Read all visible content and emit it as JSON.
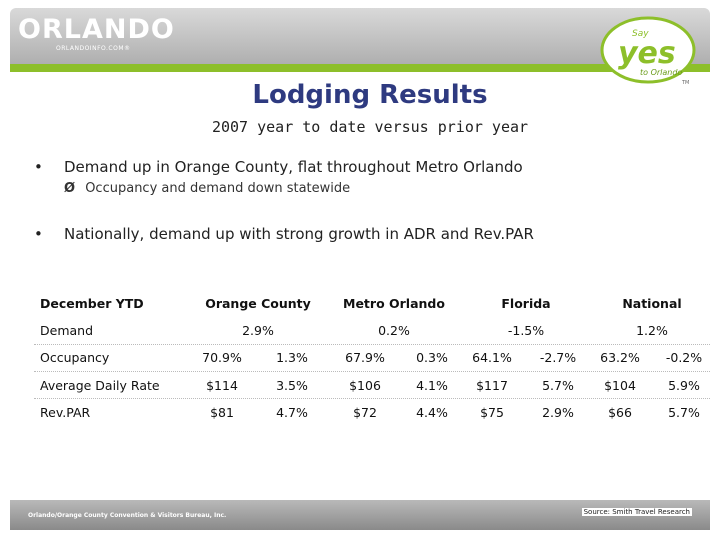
{
  "header": {
    "logo": "ORLANDO",
    "logo_sub": "ORLANDOINFO.COM®",
    "badge_say": "Say",
    "badge_yes": "yes",
    "badge_to": "to Orlando",
    "badge_tm": "TM"
  },
  "slide": {
    "title": "Lodging Results",
    "subtitle": "2007 year to date versus prior year",
    "bullet_1": "Demand up in Orange County, flat throughout Metro Orlando",
    "sub_bullet_1": "Occupancy and demand down statewide",
    "bullet_2": "Nationally, demand up with strong growth in ADR and Rev.PAR",
    "bullet_glyph": "•",
    "arrow_glyph": "Ø"
  },
  "table": {
    "corner": "December YTD",
    "regions": [
      "Orange County",
      "Metro Orlando",
      "Florida",
      "National"
    ],
    "demand_label": "Demand",
    "demand": [
      "2.9%",
      "0.2%",
      "-1.5%",
      "1.2%"
    ],
    "rows": [
      {
        "label": "Occupancy",
        "values": [
          "70.9%",
          "1.3%",
          "67.9%",
          "0.3%",
          "64.1%",
          "-2.7%",
          "63.2%",
          "-0.2%"
        ]
      },
      {
        "label": "Average Daily Rate",
        "values": [
          "$114",
          "3.5%",
          "$106",
          "4.1%",
          "$117",
          "5.7%",
          "$104",
          "5.9%"
        ]
      },
      {
        "label": "Rev.PAR",
        "values": [
          "$81",
          "4.7%",
          "$72",
          "4.4%",
          "$75",
          "2.9%",
          "$66",
          "5.7%"
        ]
      }
    ]
  },
  "footer": {
    "org": "Orlando/Orange County Convention & Visitors Bureau, Inc.",
    "source": "Source: Smith Travel Research"
  },
  "colors": {
    "title": "#2e3a80",
    "green": "#8dbf2a",
    "gray": "#a9a9a9"
  }
}
